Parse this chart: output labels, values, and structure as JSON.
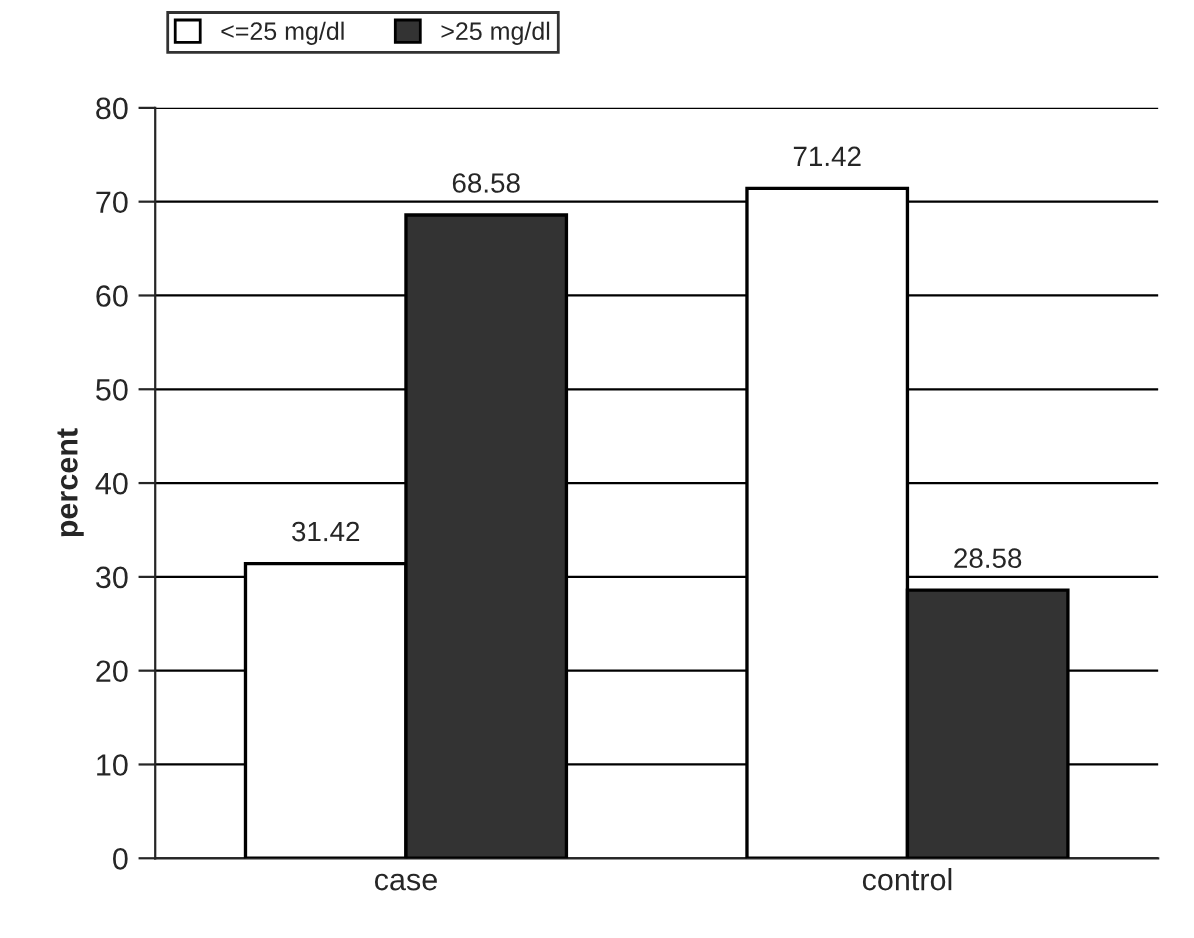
{
  "chart_data": {
    "type": "bar",
    "ylabel": "percent",
    "categories": [
      "case",
      "control"
    ],
    "series": [
      {
        "name": "<=25 mg/dl",
        "color": "#ffffff",
        "values": [
          31.42,
          71.42
        ]
      },
      {
        "name": ">25 mg/dl",
        "color": "#333333",
        "values": [
          68.58,
          28.58
        ]
      }
    ],
    "ylim": [
      0,
      80
    ],
    "yticks": [
      0,
      10,
      20,
      30,
      40,
      50,
      60,
      70,
      80
    ],
    "grid": "y",
    "legend": "top left",
    "data_labels": true
  }
}
